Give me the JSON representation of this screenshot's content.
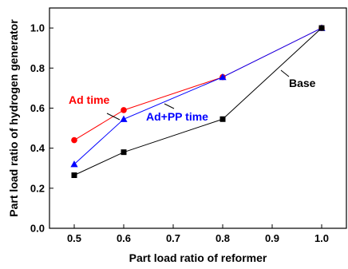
{
  "chart_data": {
    "type": "line",
    "x": [
      0.5,
      0.6,
      0.8,
      1.0
    ],
    "xlabel": "Part load ratio of reformer",
    "ylabel": "Part load ratio of hydrogen generator",
    "xlim": [
      0.45,
      1.05
    ],
    "ylim": [
      0.0,
      1.1
    ],
    "xticks": [
      "0.5",
      "0.6",
      "0.7",
      "0.8",
      "0.9",
      "1.0"
    ],
    "yticks": [
      "0.0",
      "0.2",
      "0.4",
      "0.6",
      "0.8",
      "1.0"
    ],
    "grid": false,
    "series": [
      {
        "name": "Ad time",
        "color": "#ff0000",
        "marker": "circle",
        "values": [
          0.44,
          0.59,
          0.755,
          1.0
        ]
      },
      {
        "name": "Ad+PP time",
        "color": "#0000ff",
        "marker": "triangle",
        "values": [
          0.32,
          0.545,
          0.755,
          1.0
        ]
      },
      {
        "name": "Base",
        "color": "#000000",
        "marker": "square",
        "values": [
          0.265,
          0.38,
          0.545,
          1.0
        ]
      }
    ]
  }
}
